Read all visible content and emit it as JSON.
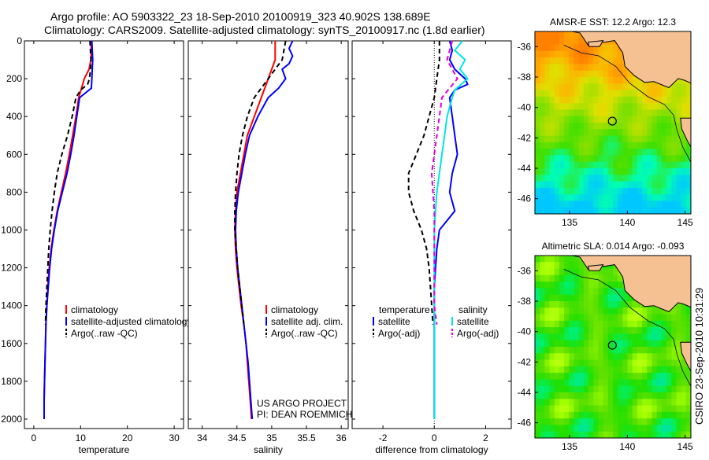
{
  "header": {
    "line1": "Argo profile: AO 5903322_23 18-Sep-2010 20100919_323 40.902S 138.689E",
    "line2": "Climatology: CARS2009. Satellite-adjusted climatology: synTS_20100917.nc (1.8d earlier)"
  },
  "colors": {
    "climatology": "#ff0000",
    "satellite": "#0000ff",
    "argo": "#000000",
    "satellite_salinity": "#00e5e5",
    "argo_salinity": "#e000e0",
    "land": "#f5c193"
  },
  "chart_data": [
    {
      "type": "line",
      "xlabel": "temperature",
      "ylabel": "",
      "xlim": [
        -2,
        32
      ],
      "ylim": [
        2050,
        0
      ],
      "xticks": [
        0,
        10,
        20,
        30
      ],
      "yticks": [
        0,
        200,
        400,
        600,
        800,
        1000,
        1200,
        1400,
        1600,
        1800,
        2000
      ],
      "legend": "lower-center",
      "series": [
        {
          "name": "climatology",
          "color": "#ff0000",
          "dash": "solid",
          "points": [
            [
              12.2,
              0
            ],
            [
              12.3,
              50
            ],
            [
              12.2,
              100
            ],
            [
              11.8,
              150
            ],
            [
              10.8,
              200
            ],
            [
              10.2,
              250
            ],
            [
              9.6,
              300
            ],
            [
              9.0,
              400
            ],
            [
              8.3,
              500
            ],
            [
              7.6,
              600
            ],
            [
              6.8,
              700
            ],
            [
              5.9,
              800
            ],
            [
              5.0,
              900
            ],
            [
              4.3,
              1000
            ],
            [
              3.7,
              1100
            ],
            [
              3.3,
              1200
            ],
            [
              3.0,
              1300
            ],
            [
              2.8,
              1400
            ],
            [
              2.6,
              1500
            ],
            [
              2.5,
              1600
            ],
            [
              2.4,
              1700
            ],
            [
              2.3,
              1800
            ],
            [
              2.2,
              1900
            ],
            [
              2.2,
              2000
            ]
          ]
        },
        {
          "name": "satellite-adjusted climatology",
          "color": "#0000ff",
          "dash": "solid",
          "points": [
            [
              12.4,
              0
            ],
            [
              12.5,
              50
            ],
            [
              12.6,
              100
            ],
            [
              12.5,
              150
            ],
            [
              12.4,
              200
            ],
            [
              12.3,
              250
            ],
            [
              9.8,
              300
            ],
            [
              9.2,
              400
            ],
            [
              8.6,
              500
            ],
            [
              7.9,
              600
            ],
            [
              7.1,
              700
            ],
            [
              6.1,
              800
            ],
            [
              5.1,
              900
            ],
            [
              4.4,
              1000
            ],
            [
              3.8,
              1100
            ],
            [
              3.4,
              1200
            ],
            [
              3.1,
              1300
            ],
            [
              2.8,
              1400
            ],
            [
              2.6,
              1500
            ],
            [
              2.5,
              1600
            ],
            [
              2.4,
              1700
            ],
            [
              2.3,
              1800
            ],
            [
              2.2,
              1900
            ],
            [
              2.2,
              2000
            ]
          ]
        },
        {
          "name": "Argo(..raw -QC)",
          "color": "#000000",
          "dash": "dash",
          "points": [
            [
              12.0,
              0
            ],
            [
              12.1,
              50
            ],
            [
              12.2,
              100
            ],
            [
              12.1,
              150
            ],
            [
              11.9,
              200
            ],
            [
              11.5,
              230
            ],
            [
              10.0,
              260
            ],
            [
              9.0,
              300
            ],
            [
              8.2,
              400
            ],
            [
              7.2,
              500
            ],
            [
              6.0,
              600
            ],
            [
              5.0,
              700
            ],
            [
              4.4,
              800
            ],
            [
              3.9,
              900
            ],
            [
              3.5,
              1000
            ],
            [
              3.2,
              1100
            ],
            [
              3.0,
              1200
            ],
            [
              2.8,
              1300
            ],
            [
              2.6,
              1400
            ],
            [
              2.5,
              1500
            ]
          ]
        }
      ]
    },
    {
      "type": "line",
      "xlabel": "salinity",
      "ylabel": "",
      "xlim": [
        33.8,
        36.1
      ],
      "ylim": [
        2050,
        0
      ],
      "xticks": [
        34,
        34.5,
        35,
        35.5,
        36
      ],
      "yticks": [
        0,
        200,
        400,
        600,
        800,
        1000,
        1200,
        1400,
        1600,
        1800,
        2000
      ],
      "legend": "lower-center",
      "annotation": [
        "US ARGO PROJECT",
        "PI: DEAN ROEMMICH"
      ],
      "series": [
        {
          "name": "climatology",
          "color": "#ff0000",
          "dash": "solid",
          "points": [
            [
              35.05,
              0
            ],
            [
              35.05,
              100
            ],
            [
              35.0,
              150
            ],
            [
              34.95,
              200
            ],
            [
              34.9,
              250
            ],
            [
              34.85,
              300
            ],
            [
              34.75,
              400
            ],
            [
              34.65,
              500
            ],
            [
              34.6,
              600
            ],
            [
              34.55,
              700
            ],
            [
              34.5,
              800
            ],
            [
              34.48,
              900
            ],
            [
              34.47,
              1000
            ],
            [
              34.48,
              1100
            ],
            [
              34.5,
              1200
            ],
            [
              34.53,
              1300
            ],
            [
              34.56,
              1400
            ],
            [
              34.6,
              1500
            ],
            [
              34.63,
              1600
            ],
            [
              34.65,
              1700
            ],
            [
              34.67,
              1800
            ],
            [
              34.69,
              1900
            ],
            [
              34.71,
              2000
            ]
          ]
        },
        {
          "name": "satellite adj. clim.",
          "color": "#0000ff",
          "dash": "solid",
          "points": [
            [
              35.3,
              0
            ],
            [
              35.25,
              40
            ],
            [
              35.3,
              80
            ],
            [
              35.25,
              120
            ],
            [
              35.15,
              150
            ],
            [
              35.2,
              200
            ],
            [
              35.1,
              250
            ],
            [
              34.95,
              300
            ],
            [
              34.8,
              400
            ],
            [
              34.68,
              500
            ],
            [
              34.62,
              600
            ],
            [
              34.57,
              700
            ],
            [
              34.52,
              800
            ],
            [
              34.49,
              900
            ],
            [
              34.48,
              1000
            ],
            [
              34.49,
              1100
            ],
            [
              34.51,
              1200
            ],
            [
              34.54,
              1300
            ],
            [
              34.57,
              1400
            ],
            [
              34.6,
              1500
            ],
            [
              34.63,
              1600
            ],
            [
              34.66,
              1700
            ],
            [
              34.68,
              1800
            ],
            [
              34.7,
              1900
            ],
            [
              34.72,
              2000
            ]
          ]
        },
        {
          "name": "Argo(..raw -QC)",
          "color": "#000000",
          "dash": "dash",
          "points": [
            [
              35.2,
              0
            ],
            [
              35.15,
              100
            ],
            [
              35.05,
              150
            ],
            [
              34.95,
              200
            ],
            [
              34.85,
              250
            ],
            [
              34.75,
              300
            ],
            [
              34.65,
              400
            ],
            [
              34.58,
              500
            ],
            [
              34.53,
              600
            ],
            [
              34.5,
              700
            ],
            [
              34.48,
              800
            ],
            [
              34.47,
              900
            ],
            [
              34.47,
              1000
            ],
            [
              34.49,
              1100
            ],
            [
              34.51,
              1200
            ],
            [
              34.54,
              1300
            ],
            [
              34.57,
              1400
            ],
            [
              34.6,
              1500
            ]
          ]
        }
      ]
    },
    {
      "type": "line",
      "xlabel": "difference from climatology",
      "ylabel": "",
      "xlim": [
        -3.2,
        3.0
      ],
      "ylim": [
        2050,
        0
      ],
      "xticks": [
        -2,
        0,
        2
      ],
      "yticks": [
        0,
        200,
        400,
        600,
        800,
        1000,
        1200,
        1400,
        1600,
        1800,
        2000
      ],
      "legend": "lower-center",
      "legend_groups": [
        "temperature",
        "salinity"
      ],
      "series": [
        {
          "name": "satellite",
          "group": "temperature",
          "color": "#0000ff",
          "dash": "solid",
          "points": [
            [
              0.6,
              0
            ],
            [
              0.7,
              50
            ],
            [
              0.6,
              100
            ],
            [
              0.8,
              150
            ],
            [
              1.2,
              200
            ],
            [
              1.3,
              230
            ],
            [
              0.8,
              260
            ],
            [
              0.6,
              300
            ],
            [
              0.7,
              400
            ],
            [
              0.8,
              500
            ],
            [
              0.9,
              600
            ],
            [
              0.7,
              700
            ],
            [
              0.6,
              800
            ],
            [
              0.8,
              900
            ],
            [
              0.2,
              1000
            ],
            [
              0.1,
              1100
            ],
            [
              0.05,
              1200
            ],
            [
              0.0,
              1300
            ],
            [
              0.0,
              1400
            ],
            [
              0.0,
              1500
            ],
            [
              0.0,
              1600
            ],
            [
              0.0,
              1700
            ],
            [
              0.0,
              1800
            ],
            [
              0.0,
              1900
            ],
            [
              0.0,
              2000
            ]
          ]
        },
        {
          "name": "Argo(-adj)",
          "group": "temperature",
          "color": "#000000",
          "dash": "dash",
          "points": [
            [
              0.2,
              0
            ],
            [
              0.2,
              100
            ],
            [
              0.1,
              200
            ],
            [
              0.0,
              300
            ],
            [
              -0.2,
              400
            ],
            [
              -0.4,
              500
            ],
            [
              -0.7,
              600
            ],
            [
              -1.0,
              700
            ],
            [
              -1.0,
              800
            ],
            [
              -0.8,
              900
            ],
            [
              -0.5,
              1000
            ],
            [
              -0.3,
              1100
            ],
            [
              -0.2,
              1200
            ],
            [
              -0.15,
              1300
            ],
            [
              -0.1,
              1400
            ],
            [
              -0.05,
              1500
            ]
          ]
        },
        {
          "name": "satellite",
          "group": "salinity",
          "color": "#00e5e5",
          "dash": "solid",
          "points": [
            [
              1.1,
              0
            ],
            [
              0.8,
              50
            ],
            [
              1.2,
              100
            ],
            [
              1.0,
              150
            ],
            [
              1.3,
              200
            ],
            [
              0.8,
              260
            ],
            [
              0.7,
              300
            ],
            [
              0.5,
              400
            ],
            [
              0.4,
              500
            ],
            [
              0.3,
              600
            ],
            [
              0.2,
              700
            ],
            [
              0.1,
              800
            ],
            [
              0.05,
              900
            ],
            [
              0.0,
              1000
            ],
            [
              0.0,
              1100
            ],
            [
              0.0,
              1200
            ],
            [
              0.0,
              1300
            ],
            [
              0.0,
              1400
            ],
            [
              0.0,
              1500
            ],
            [
              0.0,
              1600
            ],
            [
              0.0,
              1700
            ],
            [
              0.0,
              1800
            ],
            [
              0.0,
              1900
            ],
            [
              0.0,
              2000
            ]
          ]
        },
        {
          "name": "Argo(-adj)",
          "group": "salinity",
          "color": "#e000e0",
          "dash": "dash",
          "points": [
            [
              0.7,
              0
            ],
            [
              0.6,
              50
            ],
            [
              0.5,
              100
            ],
            [
              0.7,
              150
            ],
            [
              0.9,
              200
            ],
            [
              0.6,
              250
            ],
            [
              0.3,
              300
            ],
            [
              0.2,
              400
            ],
            [
              0.1,
              500
            ],
            [
              0.0,
              600
            ],
            [
              -0.1,
              700
            ],
            [
              -0.05,
              800
            ],
            [
              0.0,
              900
            ],
            [
              0.0,
              1000
            ],
            [
              0.0,
              1100
            ],
            [
              0.0,
              1200
            ],
            [
              0.0,
              1300
            ],
            [
              0.0,
              1400
            ],
            [
              0.1,
              1500
            ]
          ]
        }
      ]
    },
    {
      "type": "heatmap",
      "title": "AMSR-E SST: 12.2 Argo: 12.3",
      "xlim": [
        132,
        145.5
      ],
      "ylim": [
        -47,
        -35
      ],
      "xticks": [
        135,
        140,
        145
      ],
      "yticks": [
        -36,
        -38,
        -40,
        -42,
        -44,
        -46
      ],
      "colorscale": [
        "#00c8ff",
        "#00ffb0",
        "#40e000",
        "#90e000",
        "#e0e000",
        "#ffb000",
        "#ff8000"
      ],
      "marker": {
        "lon": 138.7,
        "lat": -40.9
      }
    },
    {
      "type": "heatmap",
      "title": "Altimetric SLA: 0.014 Argo: -0.093",
      "xlim": [
        132,
        145.5
      ],
      "ylim": [
        -47,
        -35
      ],
      "xticks": [
        135,
        140,
        145
      ],
      "yticks": [
        -36,
        -38,
        -40,
        -42,
        -44,
        -46
      ],
      "colorscale": [
        "#00d0e0",
        "#00f070",
        "#20e000",
        "#60e000",
        "#a0ff00",
        "#d0ff20"
      ],
      "marker": {
        "lon": 138.7,
        "lat": -40.9
      }
    }
  ],
  "footer": {
    "credit": "CSIRO 23-Sep-2010 10:31:29"
  }
}
